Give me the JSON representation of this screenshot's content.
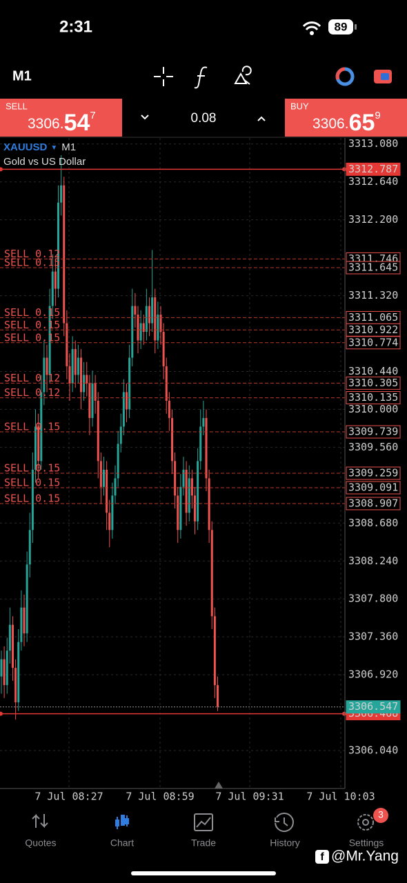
{
  "status_bar": {
    "time": "2:31",
    "battery": "89"
  },
  "toolbar": {
    "timeframe": "M1"
  },
  "trade_panel": {
    "sell": {
      "label": "SELL",
      "price_main": "3306.",
      "price_big": "54",
      "price_sup": "7"
    },
    "volume": "0.08",
    "buy": {
      "label": "BUY",
      "price_main": "3306.",
      "price_big": "65",
      "price_sup": "9"
    }
  },
  "chart": {
    "type": "candlestick",
    "symbol": "XAUUSD",
    "timeframe": "M1",
    "description": "Gold vs US Dollar",
    "ylim": [
      3305.6,
      3313.15
    ],
    "yticks": [
      {
        "value": 3313.08,
        "label": "3313.080"
      },
      {
        "value": 3312.64,
        "label": "3312.640"
      },
      {
        "value": 3312.2,
        "label": "3312.200"
      },
      {
        "value": 3311.32,
        "label": "3311.320"
      },
      {
        "value": 3310.44,
        "label": "3310.440"
      },
      {
        "value": 3310.0,
        "label": "3310.000"
      },
      {
        "value": 3309.56,
        "label": "3309.560"
      },
      {
        "value": 3308.68,
        "label": "3308.680"
      },
      {
        "value": 3308.24,
        "label": "3308.240"
      },
      {
        "value": 3307.8,
        "label": "3307.800"
      },
      {
        "value": 3307.36,
        "label": "3307.360"
      },
      {
        "value": 3306.92,
        "label": "3306.920"
      },
      {
        "value": 3306.04,
        "label": "3306.040"
      }
    ],
    "xticks": [
      "7 Jul 08:27",
      "7 Jul 08:59",
      "7 Jul 09:31",
      "7 Jul 10:03"
    ],
    "up_color": "#26a69a",
    "down_color": "#ef5350",
    "candles": [
      [
        3306.9,
        3307.2,
        3306.7,
        3307.1
      ],
      [
        3307.1,
        3307.25,
        3306.65,
        3306.8
      ],
      [
        3306.8,
        3307.35,
        3306.7,
        3307.2
      ],
      [
        3307.2,
        3307.7,
        3307.05,
        3307.5
      ],
      [
        3307.5,
        3307.6,
        3306.85,
        3307.0
      ],
      [
        3307.0,
        3307.1,
        3306.4,
        3306.6
      ],
      [
        3306.6,
        3307.45,
        3306.5,
        3307.3
      ],
      [
        3307.3,
        3307.9,
        3307.2,
        3307.7
      ],
      [
        3307.7,
        3307.85,
        3307.25,
        3307.4
      ],
      [
        3307.4,
        3308.35,
        3307.3,
        3308.2
      ],
      [
        3308.2,
        3308.8,
        3308.05,
        3308.6
      ],
      [
        3308.6,
        3309.5,
        3308.45,
        3309.3
      ],
      [
        3309.3,
        3310.0,
        3309.15,
        3309.8
      ],
      [
        3309.8,
        3309.95,
        3309.2,
        3309.4
      ],
      [
        3309.4,
        3310.4,
        3309.3,
        3310.2
      ],
      [
        3310.2,
        3310.8,
        3310.05,
        3310.6
      ],
      [
        3310.6,
        3310.75,
        3310.2,
        3310.4
      ],
      [
        3310.4,
        3311.4,
        3310.3,
        3311.2
      ],
      [
        3311.2,
        3311.8,
        3311.05,
        3311.6
      ],
      [
        3311.6,
        3311.75,
        3311.2,
        3311.4
      ],
      [
        3311.4,
        3312.6,
        3311.3,
        3312.4
      ],
      [
        3312.4,
        3312.95,
        3312.25,
        3312.6
      ],
      [
        3312.6,
        3312.7,
        3310.85,
        3311.0
      ],
      [
        3311.0,
        3311.15,
        3310.35,
        3310.5
      ],
      [
        3310.5,
        3310.65,
        3310.1,
        3310.3
      ],
      [
        3310.3,
        3310.85,
        3310.2,
        3310.7
      ],
      [
        3310.7,
        3310.8,
        3310.25,
        3310.4
      ],
      [
        3310.4,
        3310.75,
        3310.3,
        3310.6
      ],
      [
        3310.6,
        3310.7,
        3310.0,
        3310.2
      ],
      [
        3310.2,
        3310.55,
        3310.1,
        3310.4
      ],
      [
        3310.4,
        3310.55,
        3310.15,
        3310.3
      ],
      [
        3310.3,
        3310.4,
        3309.7,
        3309.9
      ],
      [
        3309.9,
        3310.45,
        3309.8,
        3310.3
      ],
      [
        3310.3,
        3310.4,
        3309.95,
        3310.1
      ],
      [
        3310.1,
        3310.2,
        3309.2,
        3309.4
      ],
      [
        3309.4,
        3309.5,
        3308.9,
        3309.1
      ],
      [
        3309.1,
        3309.45,
        3309.0,
        3309.3
      ],
      [
        3309.3,
        3309.4,
        3308.6,
        3308.8
      ],
      [
        3308.8,
        3308.95,
        3308.4,
        3308.6
      ],
      [
        3308.6,
        3309.15,
        3308.5,
        3309.0
      ],
      [
        3309.0,
        3309.35,
        3308.9,
        3309.2
      ],
      [
        3309.2,
        3309.75,
        3309.1,
        3309.6
      ],
      [
        3309.6,
        3309.95,
        3309.5,
        3309.8
      ],
      [
        3309.8,
        3310.35,
        3309.7,
        3310.2
      ],
      [
        3310.2,
        3310.3,
        3309.85,
        3310.0
      ],
      [
        3310.0,
        3310.75,
        3309.9,
        3310.6
      ],
      [
        3310.6,
        3311.4,
        3310.5,
        3311.2
      ],
      [
        3311.2,
        3311.35,
        3310.95,
        3311.1
      ],
      [
        3311.1,
        3311.2,
        3310.65,
        3310.8
      ],
      [
        3310.8,
        3311.15,
        3310.7,
        3311.0
      ],
      [
        3311.0,
        3311.1,
        3310.75,
        3310.9
      ],
      [
        3310.9,
        3311.4,
        3310.8,
        3311.2
      ],
      [
        3311.2,
        3311.3,
        3310.85,
        3311.0
      ],
      [
        3311.0,
        3311.85,
        3310.9,
        3311.3
      ],
      [
        3311.3,
        3311.4,
        3310.65,
        3310.8
      ],
      [
        3310.8,
        3311.25,
        3310.7,
        3311.1
      ],
      [
        3311.1,
        3311.2,
        3310.75,
        3310.9
      ],
      [
        3310.9,
        3311.0,
        3310.35,
        3310.5
      ],
      [
        3310.5,
        3310.6,
        3309.95,
        3310.1
      ],
      [
        3310.1,
        3310.2,
        3309.75,
        3309.9
      ],
      [
        3309.9,
        3310.0,
        3309.25,
        3309.4
      ],
      [
        3309.4,
        3309.5,
        3308.85,
        3309.0
      ],
      [
        3309.0,
        3309.1,
        3308.45,
        3308.6
      ],
      [
        3308.6,
        3309.25,
        3308.5,
        3309.1
      ],
      [
        3309.1,
        3309.45,
        3309.0,
        3309.3
      ],
      [
        3309.3,
        3309.4,
        3308.65,
        3308.8
      ],
      [
        3308.8,
        3309.35,
        3308.7,
        3309.2
      ],
      [
        3309.2,
        3309.3,
        3308.85,
        3309.0
      ],
      [
        3309.0,
        3309.1,
        3308.55,
        3308.7
      ],
      [
        3308.7,
        3309.55,
        3308.6,
        3309.4
      ],
      [
        3309.4,
        3310.0,
        3309.3,
        3309.8
      ],
      [
        3309.8,
        3310.1,
        3309.7,
        3309.9
      ],
      [
        3309.9,
        3310.0,
        3309.05,
        3309.2
      ],
      [
        3309.2,
        3309.3,
        3308.45,
        3308.6
      ],
      [
        3308.6,
        3308.7,
        3307.45,
        3307.6
      ],
      [
        3307.6,
        3307.7,
        3306.65,
        3306.8
      ],
      [
        3306.8,
        3306.9,
        3306.5,
        3306.55
      ]
    ],
    "positions": [
      {
        "label": "SELL 0.12",
        "price": 3311.746
      },
      {
        "label": "SELL 0.15",
        "price": 3311.645
      },
      {
        "label": "SELL 0.15",
        "price": 3311.065
      },
      {
        "label": "SELL 0.15",
        "price": 3310.922
      },
      {
        "label": "SELL 0.15",
        "price": 3310.774
      },
      {
        "label": "SELL 0.12",
        "price": 3310.305
      },
      {
        "label": "SELL 0.12",
        "price": 3310.135
      },
      {
        "label": "SELL 0.15",
        "price": 3309.739
      },
      {
        "label": "SELL 0.15",
        "price": 3309.259
      },
      {
        "label": "SELL 0.15",
        "price": 3309.091
      },
      {
        "label": "SELL 0.15",
        "price": 3308.907
      }
    ],
    "levels": [
      3312.787,
      3306.468
    ],
    "bid": 3306.547
  },
  "tab_bar": {
    "tabs": [
      "Quotes",
      "Chart",
      "Trade",
      "History",
      "Settings"
    ],
    "active": 1,
    "badge": "3"
  },
  "watermark": "@Mr.Yang"
}
